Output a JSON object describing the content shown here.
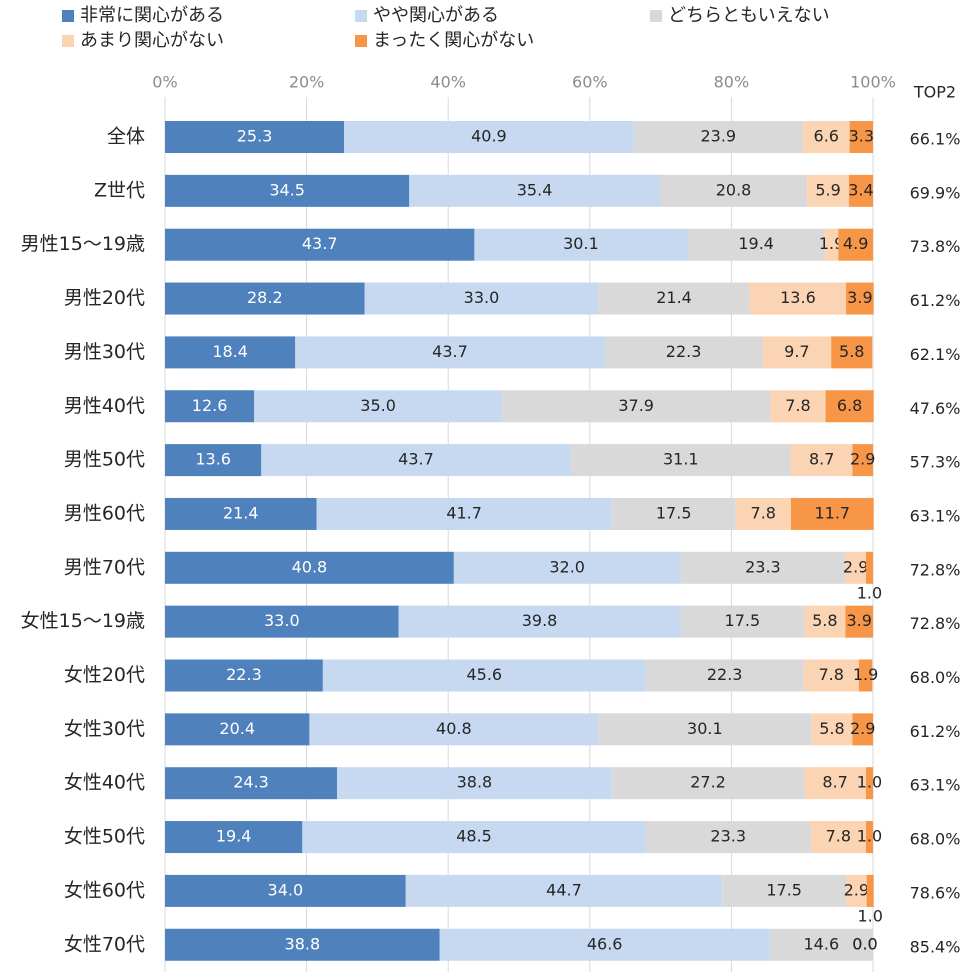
{
  "chart_data": {
    "type": "stacked-barh",
    "categories": [
      "全体",
      "Z世代",
      "男性15〜19歳",
      "男性20代",
      "男性30代",
      "男性40代",
      "男性50代",
      "男性60代",
      "男性70代",
      "女性15〜19歳",
      "女性20代",
      "女性30代",
      "女性40代",
      "女性50代",
      "女性60代",
      "女性70代"
    ],
    "series": [
      {
        "name": "非常に関心がある",
        "color": "#4f81bd",
        "label_color": "#ffffff",
        "values": [
          25.3,
          34.5,
          43.7,
          28.2,
          18.4,
          12.6,
          13.6,
          21.4,
          40.8,
          33.0,
          22.3,
          20.4,
          24.3,
          19.4,
          34.0,
          38.8
        ],
        "value_labels": [
          "25.3",
          "34.5",
          "43.7",
          "28.2",
          "18.4",
          "12.6",
          "13.6",
          "21.4",
          "40.8",
          "33.0",
          "22.3",
          "20.4",
          "24.3",
          "19.4",
          "34.0",
          "38.8"
        ]
      },
      {
        "name": "やや関心がある",
        "color": "#c6d9f1",
        "label_color": "#262626",
        "values": [
          40.9,
          35.4,
          30.1,
          33.0,
          43.7,
          35.0,
          43.7,
          41.7,
          32.0,
          39.8,
          45.6,
          40.8,
          38.8,
          48.5,
          44.7,
          46.6
        ],
        "value_labels": [
          "40.9",
          "35.4",
          "30.1",
          "33.0",
          "43.7",
          "35.0",
          "43.7",
          "41.7",
          "32.0",
          "39.8",
          "45.6",
          "40.8",
          "38.8",
          "48.5",
          "44.7",
          "46.6"
        ]
      },
      {
        "name": "どちらともいえない",
        "color": "#d9d9d9",
        "label_color": "#262626",
        "values": [
          23.9,
          20.8,
          19.4,
          21.4,
          22.3,
          37.9,
          31.1,
          17.5,
          23.3,
          17.5,
          22.3,
          30.1,
          27.2,
          23.3,
          17.5,
          14.6
        ],
        "value_labels": [
          "23.9",
          "20.8",
          "19.4",
          "21.4",
          "22.3",
          "37.9",
          "31.1",
          "17.5",
          "23.3",
          "17.5",
          "22.3",
          "30.1",
          "27.2",
          "23.3",
          "17.5",
          "14.6"
        ]
      },
      {
        "name": "あまり関心がない",
        "color": "#fbd4b4",
        "label_color": "#262626",
        "values": [
          6.6,
          5.9,
          1.9,
          13.6,
          9.7,
          7.8,
          8.7,
          7.8,
          2.9,
          5.8,
          7.8,
          5.8,
          8.7,
          7.8,
          2.9,
          0.0
        ],
        "value_labels": [
          "6.6",
          "5.9",
          "1.9",
          "13.6",
          "9.7",
          "7.8",
          "8.7",
          "7.8",
          "2.9",
          "5.8",
          "7.8",
          "5.8",
          "8.7",
          "7.8",
          "2.9",
          "0.0"
        ]
      },
      {
        "name": "まったく関心がない",
        "color": "#f79646",
        "label_color": "#262626",
        "values": [
          3.3,
          3.4,
          4.9,
          3.9,
          5.8,
          6.8,
          2.9,
          11.7,
          1.0,
          3.9,
          1.9,
          2.9,
          1.0,
          1.0,
          1.0,
          0.0
        ],
        "value_labels": [
          "3.3",
          "3.4",
          "4.9",
          "3.9",
          "5.8",
          "6.8",
          "2.9",
          "11.7",
          "1.0",
          "3.9",
          "1.9",
          "2.9",
          "1.0",
          "1.0",
          "1.0",
          "0.0"
        ]
      }
    ],
    "xlim": [
      0,
      100
    ],
    "xticks": [
      {
        "value": 0,
        "label": "0%"
      },
      {
        "value": 20,
        "label": "20%"
      },
      {
        "value": 40,
        "label": "40%"
      },
      {
        "value": 60,
        "label": "60%"
      },
      {
        "value": 80,
        "label": "80%"
      },
      {
        "value": 100,
        "label": "100%"
      }
    ],
    "grid": true,
    "legend": "top",
    "top2": {
      "title": "TOP2",
      "values": [
        "66.1%",
        "69.9%",
        "73.8%",
        "61.2%",
        "62.1%",
        "47.6%",
        "57.3%",
        "63.1%",
        "72.8%",
        "72.8%",
        "68.0%",
        "61.2%",
        "63.1%",
        "68.0%",
        "78.6%",
        "85.4%"
      ]
    }
  }
}
